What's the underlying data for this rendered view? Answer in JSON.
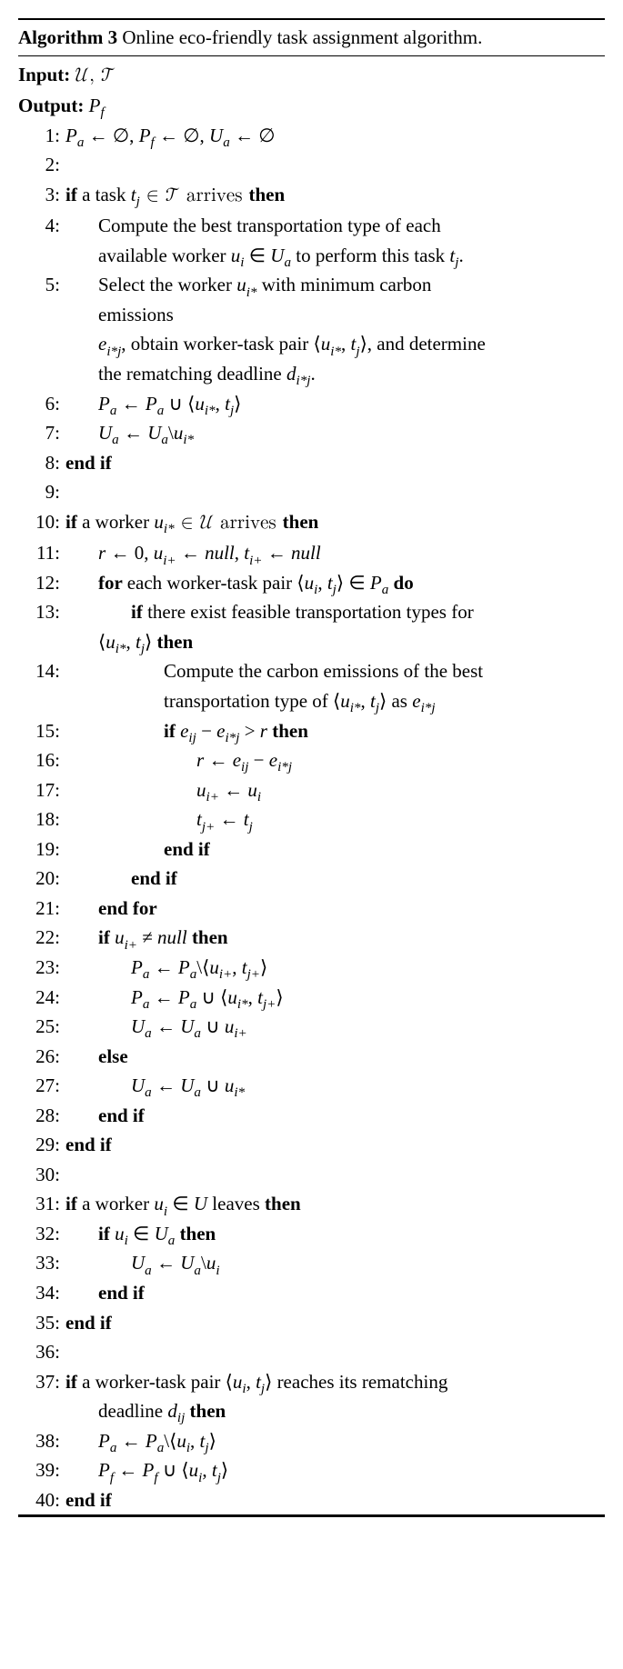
{
  "title_label": "Algorithm 3",
  "title_text": "Online eco-friendly task assignment algorithm.",
  "input_label": "Input:",
  "input_value": "𝒰, 𝒯",
  "output_label": "Output:",
  "output_value": "P",
  "output_sub": "f",
  "lines": {
    "l1": "P",
    "l1_sub_a": "a",
    "l1_arrow": " ← ∅, ",
    "l1_pf": "P",
    "l1_sub_f": "f",
    "l1_arrow2": " ← ∅, ",
    "l1_ua": "U",
    "l1_sub_ua": "a",
    "l1_end": " ← ∅",
    "l3_if": "if ",
    "l3_text": "a task ",
    "l3_t": "t",
    "l3_tj": "j",
    "l3_in": " ∈ 𝒯 arrives ",
    "l3_then": "then",
    "l4_a": "Compute the best transportation type of each",
    "l4_b": "available worker ",
    "l4_u": "u",
    "l4_ui": "i",
    "l4_in": " ∈ ",
    "l4_Ua": "U",
    "l4_Ua_a": "a",
    "l4_rest": " to perform this task ",
    "l4_t": "t",
    "l4_tj": "j",
    "l4_dot": ".",
    "l5_a": "Select the worker ",
    "l5_u": "u",
    "l5_ui": "i*",
    "l5_b": " with minimum carbon",
    "l5_c": "emissions",
    "l5_d1": "e",
    "l5_d1s": "i*j",
    "l5_d2": ", obtain worker-task pair ⟨",
    "l5_d3": "u",
    "l5_d3s": "i*",
    "l5_d4": ", ",
    "l5_d5": "t",
    "l5_d5s": "j",
    "l5_d6": "⟩, and determine",
    "l5_e": "the rematching deadline ",
    "l5_e1": "d",
    "l5_e1s": "i*j",
    "l5_e2": ".",
    "l6_pa": "P",
    "l6_pas": "a",
    "l6_arrow": " ← ",
    "l6_pa2": "P",
    "l6_pa2s": "a",
    "l6_union": " ∪ ⟨",
    "l6_u": "u",
    "l6_us": "i*",
    "l6_c": ", ",
    "l6_t": "t",
    "l6_ts": "j",
    "l6_end": "⟩",
    "l7_ua": "U",
    "l7_uas": "a",
    "l7_arrow": " ← ",
    "l7_ua2": "U",
    "l7_ua2s": "a",
    "l7_minus": "\\",
    "l7_u": "u",
    "l7_us": "i*",
    "l8": "end if",
    "l10_if": "if ",
    "l10_t": "a worker ",
    "l10_u": "u",
    "l10_us": "i*",
    "l10_in": " ∈ 𝒰 arrives ",
    "l10_then": "then",
    "l11_r": "r",
    "l11_a": " ← 0, ",
    "l11_u": "u",
    "l11_us": "i+",
    "l11_b": " ← ",
    "l11_null1": "null",
    "l11_c": ", ",
    "l11_t": "t",
    "l11_ts": "i+",
    "l11_d": " ← ",
    "l11_null2": "null",
    "l12_for": "for ",
    "l12_t": "each worker-task pair ⟨",
    "l12_u": "u",
    "l12_us": "i",
    "l12_c": ", ",
    "l12_tt": "t",
    "l12_tts": "j",
    "l12_ang": "⟩ ∈ ",
    "l12_pa": "P",
    "l12_pas": "a",
    "l12_do": " do",
    "l13_if": "if ",
    "l13_t": "there exist feasible transportation types for",
    "l13b_a": "⟨",
    "l13b_u": "u",
    "l13b_us": "i*",
    "l13b_c": ", ",
    "l13b_t": "t",
    "l13b_ts": "j",
    "l13b_b": "⟩ ",
    "l13_then": "then",
    "l14_a": "Compute the carbon emissions of the best",
    "l14_b": "transportation type of ⟨",
    "l14_u": "u",
    "l14_us": "i*",
    "l14_c": ", ",
    "l14_t": "t",
    "l14_ts": "j",
    "l14_d": "⟩ as ",
    "l14_e": "e",
    "l14_es": "i*j",
    "l15_if": "if ",
    "l15_e1": "e",
    "l15_e1s": "ij",
    "l15_m": " − ",
    "l15_e2": "e",
    "l15_e2s": "i*j",
    "l15_gt": " > ",
    "l15_r": "r",
    "l15_then": " then",
    "l16_r": "r",
    "l16_a": " ← ",
    "l16_e1": "e",
    "l16_e1s": "ij",
    "l16_m": " − ",
    "l16_e2": "e",
    "l16_e2s": "i*j",
    "l17_u": "u",
    "l17_us": "i+",
    "l17_a": " ← ",
    "l17_u2": "u",
    "l17_u2s": "i",
    "l18_t": "t",
    "l18_ts": "j+",
    "l18_a": " ← ",
    "l18_t2": "t",
    "l18_t2s": "j",
    "l19": "end if",
    "l20": "end if",
    "l21": "end for",
    "l22_if": "if ",
    "l22_u": "u",
    "l22_us": "i+",
    "l22_ne": " ≠ ",
    "l22_null": "null",
    "l22_then": " then",
    "l23_pa": "P",
    "l23_pas": "a",
    "l23_a": " ← ",
    "l23_pa2": "P",
    "l23_pa2s": "a",
    "l23_m": "\\⟨",
    "l23_u": "u",
    "l23_us": "i+",
    "l23_c": ", ",
    "l23_t": "t",
    "l23_ts": "j+",
    "l23_e": "⟩",
    "l24_pa": "P",
    "l24_pas": "a",
    "l24_a": " ← ",
    "l24_pa2": "P",
    "l24_pa2s": "a",
    "l24_u": " ∪ ⟨",
    "l24_uu": "u",
    "l24_us": "i*",
    "l24_c": ", ",
    "l24_t": "t",
    "l24_ts": "j+",
    "l24_e": "⟩",
    "l25_ua": "U",
    "l25_uas": "a",
    "l25_a": " ← ",
    "l25_ua2": "U",
    "l25_ua2s": "a",
    "l25_u": " ∪ ",
    "l25_uu": "u",
    "l25_us": "i+",
    "l26": "else",
    "l27_ua": "U",
    "l27_uas": "a",
    "l27_a": " ← ",
    "l27_ua2": "U",
    "l27_ua2s": "a",
    "l27_u": " ∪ ",
    "l27_uu": "u",
    "l27_us": "i*",
    "l28": "end if",
    "l29": "end if",
    "l31_if": "if ",
    "l31_t": "a worker ",
    "l31_u": "u",
    "l31_us": "i",
    "l31_in": " ∈ ",
    "l31_U": "U",
    "l31_l": " leaves ",
    "l31_then": "then",
    "l32_if": "if ",
    "l32_u": "u",
    "l32_us": "i",
    "l32_in": " ∈ ",
    "l32_ua": "U",
    "l32_uas": "a",
    "l32_then": " then",
    "l33_ua": "U",
    "l33_uas": "a",
    "l33_a": " ← ",
    "l33_ua2": "U",
    "l33_ua2s": "a",
    "l33_m": "\\",
    "l33_u": "u",
    "l33_us": "i",
    "l34": "end if",
    "l35": "end if",
    "l37_if": "if ",
    "l37_t": "a worker-task pair ⟨",
    "l37_u": "u",
    "l37_us": "i",
    "l37_c": ", ",
    "l37_tt": "t",
    "l37_tts": "j",
    "l37_a": "⟩ reaches its rematching",
    "l37b": "deadline ",
    "l37b_d": "d",
    "l37b_ds": "ij",
    "l37_then": " then",
    "l38_pa": "P",
    "l38_pas": "a",
    "l38_a": " ← ",
    "l38_pa2": "P",
    "l38_pa2s": "a",
    "l38_m": "\\⟨",
    "l38_u": "u",
    "l38_us": "i",
    "l38_c": ", ",
    "l38_t": "t",
    "l38_ts": "j",
    "l38_e": "⟩",
    "l39_pf": "P",
    "l39_pfs": "f",
    "l39_a": " ← ",
    "l39_pf2": "P",
    "l39_pf2s": "f",
    "l39_u": " ∪ ⟨",
    "l39_uu": "u",
    "l39_us": "i",
    "l39_c": ", ",
    "l39_t": "t",
    "l39_ts": "j",
    "l39_e": "⟩",
    "l40": "end if"
  },
  "nums": [
    "1:",
    "2:",
    "3:",
    "4:",
    "5:",
    "6:",
    "7:",
    "8:",
    "9:",
    "10:",
    "11:",
    "12:",
    "13:",
    "14:",
    "15:",
    "16:",
    "17:",
    "18:",
    "19:",
    "20:",
    "21:",
    "22:",
    "23:",
    "24:",
    "25:",
    "26:",
    "27:",
    "28:",
    "29:",
    "30:",
    "31:",
    "32:",
    "33:",
    "34:",
    "35:",
    "36:",
    "37:",
    "38:",
    "39:",
    "40:"
  ]
}
